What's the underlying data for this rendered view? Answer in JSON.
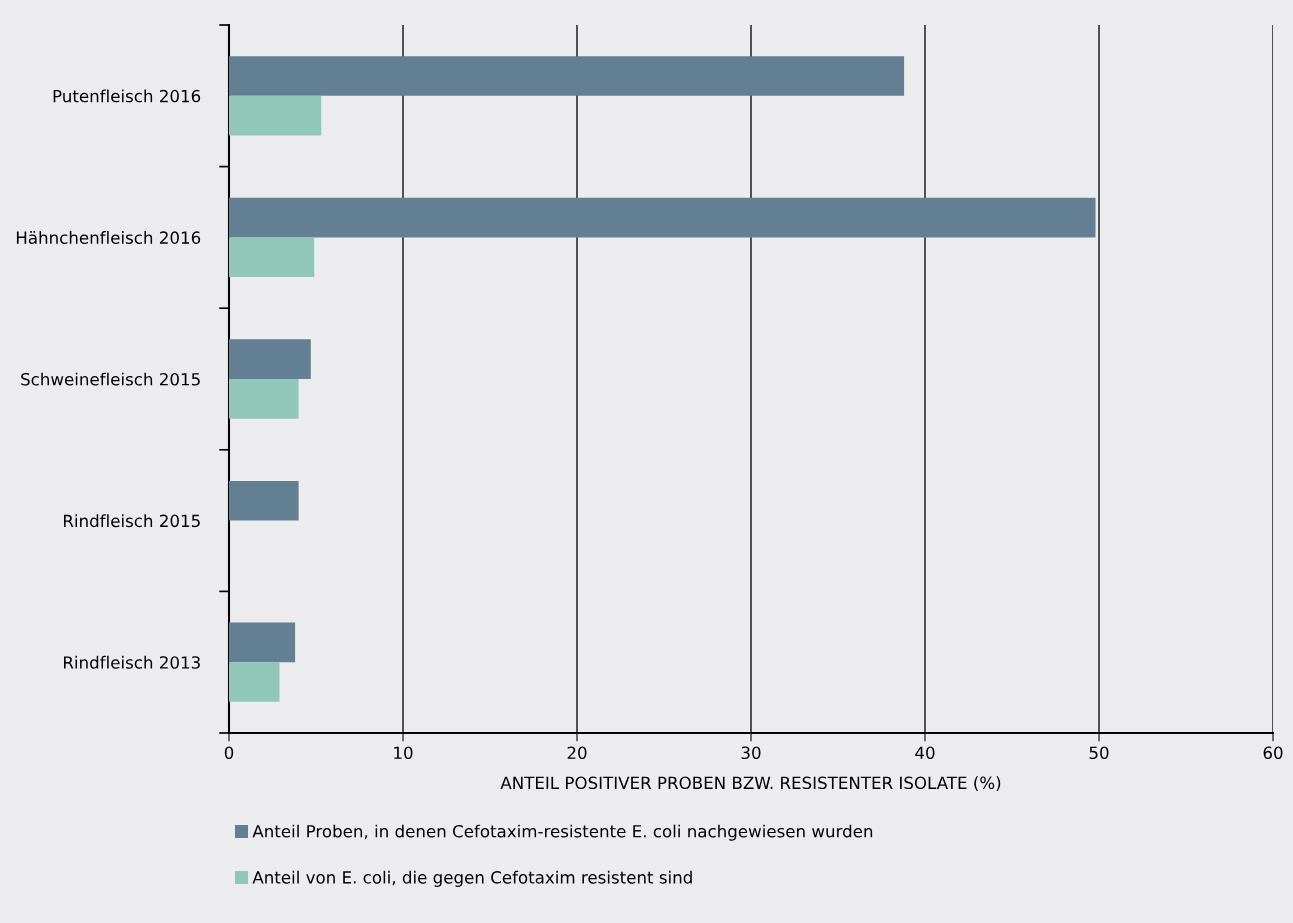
{
  "chart_data": {
    "type": "bar",
    "orientation": "horizontal",
    "categories": [
      "Putenfleisch 2016",
      "Hähnchenfleisch 2016",
      "Schweinefleisch 2015",
      "Rindfleisch 2015",
      "Rindfleisch 2013"
    ],
    "series": [
      {
        "name": "Anteil Proben, in denen Cefotaxim-resistente E. coli nachgewiesen wurden",
        "color": "#637f94",
        "values": [
          38.8,
          49.8,
          4.7,
          4.0,
          3.8
        ]
      },
      {
        "name": "Anteil von E. coli, die gegen Cefotaxim resistent sind",
        "color": "#90c7b8",
        "values": [
          5.3,
          4.9,
          4.0,
          null,
          2.9
        ]
      }
    ],
    "xlabel": "ANTEIL POSITIVER PROBEN BZW. RESISTENTER ISOLATE (%)",
    "xlim": [
      0,
      60
    ],
    "xticks": [
      0,
      10,
      20,
      30,
      40,
      50,
      60
    ],
    "grid": "x",
    "legend": "bottom"
  }
}
